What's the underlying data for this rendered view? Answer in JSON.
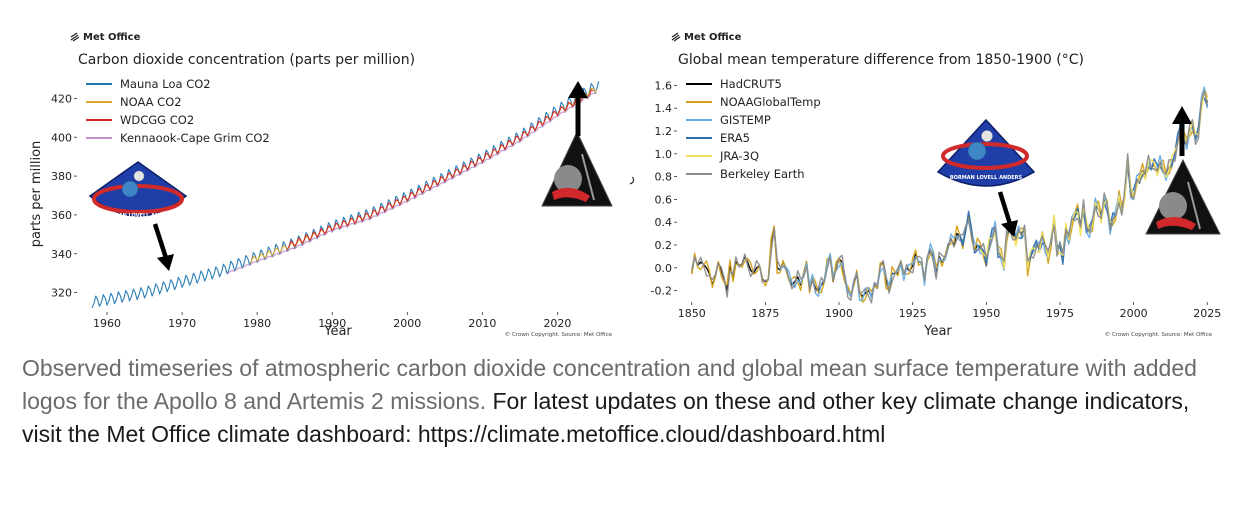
{
  "brand": "Met Office",
  "copyright": "© Crown Copyright. Source: Met Office",
  "caption": {
    "part1": "Observed timeseries of atmospheric carbon dioxide concentration and global mean surface temperature with added logos for the Apollo 8 and Artemis 2 missions.",
    "part2": " For latest updates on these and other key climate change indicators, visit the Met Office climate dashboard: https://climate.metoffice.cloud/dashboard.html"
  },
  "logos": {
    "apollo8_text": "BORMAN LOVELL ANDERS"
  },
  "chart_data": [
    {
      "type": "line",
      "title": "Carbon dioxide concentration (parts per million)",
      "xlabel": "Year",
      "ylabel": "parts per million",
      "xlim": [
        1956,
        2027
      ],
      "ylim": [
        310,
        430
      ],
      "xticks": [
        1960,
        1970,
        1980,
        1990,
        2000,
        2010,
        2020
      ],
      "yticks": [
        320,
        340,
        360,
        380,
        400,
        420
      ],
      "legend": "top-left",
      "grid": false,
      "series": [
        {
          "name": "Mauna Loa CO2",
          "color": "#1f77b4",
          "start": 1958,
          "end": 2025.5,
          "seasonal_amplitude": 3,
          "anchors": [
            [
              1958,
              315
            ],
            [
              1965,
              320
            ],
            [
              1970,
              325.5
            ],
            [
              1975,
              331
            ],
            [
              1980,
              338.5
            ],
            [
              1985,
              345.5
            ],
            [
              1990,
              354
            ],
            [
              1995,
              360.5
            ],
            [
              2000,
              369.5
            ],
            [
              2005,
              379.5
            ],
            [
              2010,
              389.5
            ],
            [
              2015,
              400.5
            ],
            [
              2020,
              414
            ],
            [
              2025,
              426
            ]
          ]
        },
        {
          "name": "NOAA CO2",
          "color": "#e0a526",
          "start": 1979,
          "end": 2025.3,
          "seasonal_amplitude": 1.5,
          "anchors": [
            [
              1979,
              336.5
            ],
            [
              1985,
              345
            ],
            [
              1990,
              353.5
            ],
            [
              1995,
              360
            ],
            [
              2000,
              369
            ],
            [
              2005,
              379
            ],
            [
              2010,
              389
            ],
            [
              2015,
              400
            ],
            [
              2020,
              413
            ],
            [
              2025,
              425
            ]
          ]
        },
        {
          "name": "WDCGG CO2",
          "color": "#d62728",
          "start": 1984,
          "end": 2024.9,
          "seasonal_amplitude": 1.8,
          "anchors": [
            [
              1984,
              344
            ],
            [
              1990,
              353.5
            ],
            [
              1995,
              360
            ],
            [
              2000,
              369
            ],
            [
              2005,
              379
            ],
            [
              2010,
              389
            ],
            [
              2015,
              400
            ],
            [
              2020,
              413
            ],
            [
              2024.9,
              423.5
            ]
          ]
        },
        {
          "name": "Kennaook-Cape Grim CO2",
          "color": "#c28fc7",
          "start": 1976,
          "end": 2025.3,
          "seasonal_amplitude": 0.5,
          "anchors": [
            [
              1976,
              330
            ],
            [
              1980,
              336
            ],
            [
              1985,
              343
            ],
            [
              1990,
              352
            ],
            [
              1995,
              358
            ],
            [
              2000,
              367
            ],
            [
              2005,
              377
            ],
            [
              2010,
              387
            ],
            [
              2015,
              398
            ],
            [
              2020,
              411
            ],
            [
              2025,
              423
            ]
          ]
        }
      ],
      "annotations": [
        {
          "label": "Apollo 8",
          "year": 1968,
          "value": 322
        },
        {
          "label": "Artemis 2",
          "year": 2026,
          "value": 428
        }
      ]
    },
    {
      "type": "line",
      "title": "Global mean temperature difference from 1850-1900 (°C)",
      "xlabel": "Year",
      "ylabel": "°C",
      "xlim": [
        1845,
        2030
      ],
      "ylim": [
        -0.3,
        1.7
      ],
      "xticks": [
        1850,
        1875,
        1900,
        1925,
        1950,
        1975,
        2000,
        2025
      ],
      "yticks": [
        -0.2,
        0.0,
        0.2,
        0.4,
        0.6,
        0.8,
        1.0,
        1.2,
        1.4,
        1.6
      ],
      "legend": "top-left",
      "grid": false,
      "anomaly": {
        "years": [
          1850,
          1851,
          1852,
          1853,
          1854,
          1855,
          1856,
          1857,
          1858,
          1859,
          1860,
          1861,
          1862,
          1863,
          1864,
          1865,
          1866,
          1867,
          1868,
          1869,
          1870,
          1871,
          1872,
          1873,
          1874,
          1875,
          1876,
          1877,
          1878,
          1879,
          1880,
          1881,
          1882,
          1883,
          1884,
          1885,
          1886,
          1887,
          1888,
          1889,
          1890,
          1891,
          1892,
          1893,
          1894,
          1895,
          1896,
          1897,
          1898,
          1899,
          1900,
          1901,
          1902,
          1903,
          1904,
          1905,
          1906,
          1907,
          1908,
          1909,
          1910,
          1911,
          1912,
          1913,
          1914,
          1915,
          1916,
          1917,
          1918,
          1919,
          1920,
          1921,
          1922,
          1923,
          1924,
          1925,
          1926,
          1927,
          1928,
          1929,
          1930,
          1931,
          1932,
          1933,
          1934,
          1935,
          1936,
          1937,
          1938,
          1939,
          1940,
          1941,
          1942,
          1943,
          1944,
          1945,
          1946,
          1947,
          1948,
          1949,
          1950,
          1951,
          1952,
          1953,
          1954,
          1955,
          1956,
          1957,
          1958,
          1959,
          1960,
          1961,
          1962,
          1963,
          1964,
          1965,
          1966,
          1967,
          1968,
          1969,
          1970,
          1971,
          1972,
          1973,
          1974,
          1975,
          1976,
          1977,
          1978,
          1979,
          1980,
          1981,
          1982,
          1983,
          1984,
          1985,
          1986,
          1987,
          1988,
          1989,
          1990,
          1991,
          1992,
          1993,
          1994,
          1995,
          1996,
          1997,
          1998,
          1999,
          2000,
          2001,
          2002,
          2003,
          2004,
          2005,
          2006,
          2007,
          2008,
          2009,
          2010,
          2011,
          2012,
          2013,
          2014,
          2015,
          2016,
          2017,
          2018,
          2019,
          2020,
          2021,
          2022,
          2023,
          2024,
          2025
        ],
        "values": [
          -0.05,
          0.1,
          0.02,
          0.05,
          0.03,
          0.0,
          -0.05,
          -0.15,
          -0.08,
          0.05,
          -0.02,
          -0.1,
          -0.2,
          0.02,
          -0.1,
          0.05,
          0.02,
          0.03,
          0.1,
          0.05,
          -0.02,
          -0.05,
          0.0,
          0.02,
          -0.1,
          -0.12,
          -0.1,
          0.2,
          0.35,
          0.0,
          -0.02,
          0.05,
          0.0,
          -0.1,
          -0.15,
          -0.12,
          -0.08,
          -0.15,
          -0.05,
          0.05,
          -0.2,
          -0.1,
          -0.18,
          -0.2,
          -0.15,
          -0.12,
          0.05,
          0.1,
          -0.12,
          0.0,
          0.08,
          0.05,
          -0.1,
          -0.2,
          -0.25,
          -0.15,
          -0.05,
          -0.22,
          -0.25,
          -0.22,
          -0.2,
          -0.25,
          -0.15,
          -0.18,
          0.02,
          0.05,
          -0.12,
          -0.2,
          -0.05,
          -0.05,
          -0.05,
          0.05,
          -0.05,
          0.0,
          -0.03,
          0.02,
          0.12,
          0.05,
          0.05,
          -0.1,
          0.1,
          0.15,
          0.1,
          -0.05,
          0.1,
          0.05,
          0.1,
          0.2,
          0.25,
          0.2,
          0.3,
          0.28,
          0.22,
          0.35,
          0.45,
          0.28,
          0.15,
          0.2,
          0.18,
          0.15,
          0.05,
          0.2,
          0.28,
          0.35,
          0.15,
          0.12,
          0.02,
          0.3,
          0.35,
          0.3,
          0.25,
          0.32,
          0.3,
          0.35,
          0.0,
          0.1,
          0.15,
          0.2,
          0.18,
          0.28,
          0.2,
          0.1,
          0.22,
          0.42,
          0.15,
          0.2,
          0.1,
          0.35,
          0.25,
          0.4,
          0.45,
          0.5,
          0.35,
          0.55,
          0.35,
          0.32,
          0.38,
          0.55,
          0.52,
          0.45,
          0.6,
          0.55,
          0.35,
          0.42,
          0.45,
          0.62,
          0.5,
          0.65,
          0.95,
          0.65,
          0.62,
          0.75,
          0.78,
          0.85,
          0.82,
          0.92,
          0.88,
          0.9,
          0.85,
          0.92,
          0.88,
          0.82,
          0.88,
          0.92,
          0.98,
          1.12,
          1.25,
          1.15,
          1.1,
          1.2,
          1.25,
          1.12,
          1.18,
          1.45,
          1.55,
          1.45
        ]
      },
      "series": [
        {
          "name": "HadCRUT5",
          "color": "#000000",
          "start": 1850
        },
        {
          "name": "NOAAGlobalTemp",
          "color": "#d4a017",
          "start": 1850
        },
        {
          "name": "GISTEMP",
          "color": "#66aee6",
          "start": 1880
        },
        {
          "name": "ERA5",
          "color": "#2f6fb0",
          "start": 1940
        },
        {
          "name": "JRA-3Q",
          "color": "#f5e05a",
          "start": 1948
        },
        {
          "name": "Berkeley Earth",
          "color": "#8c8c8c",
          "start": 1850
        }
      ],
      "annotations": [
        {
          "label": "Apollo 8",
          "year": 1968,
          "value": 0.2
        },
        {
          "label": "Artemis 2",
          "year": 2026,
          "value": 1.5
        }
      ]
    }
  ]
}
